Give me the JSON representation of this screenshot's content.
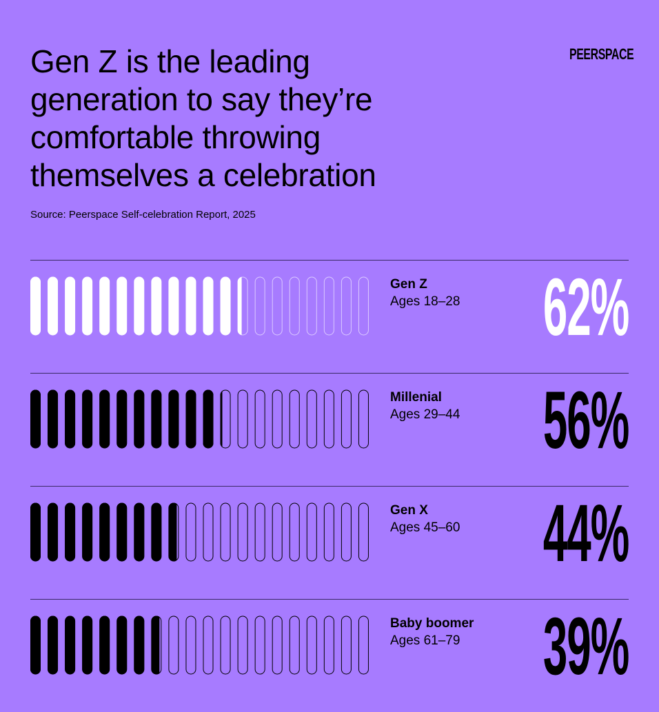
{
  "title_lines": [
    "Gen Z is the leading",
    "generation to say they’re",
    "comfortable throwing",
    "themselves a celebration"
  ],
  "source": "Source: Peerspace Self-celebration Report, 2025",
  "logo": "PEERSPACE",
  "colors": {
    "background": "#a77bff",
    "highlight": "#ffffff",
    "default": "#000000"
  },
  "chart_data": {
    "type": "bar",
    "style": "pictogram of 20 pills per row, filled proportionally",
    "unit": "%",
    "rows": [
      {
        "label": "Gen Z",
        "ages": "Ages 18–28",
        "value": 62,
        "display": "62%",
        "highlight": true
      },
      {
        "label": "Millenial",
        "ages": "Ages 29–44",
        "value": 56,
        "display": "56%",
        "highlight": false
      },
      {
        "label": "Gen X",
        "ages": "Ages 45–60",
        "value": 44,
        "display": "44%",
        "highlight": false
      },
      {
        "label": "Baby boomer",
        "ages": "Ages 61–79",
        "value": 39,
        "display": "39%",
        "highlight": false
      }
    ]
  }
}
